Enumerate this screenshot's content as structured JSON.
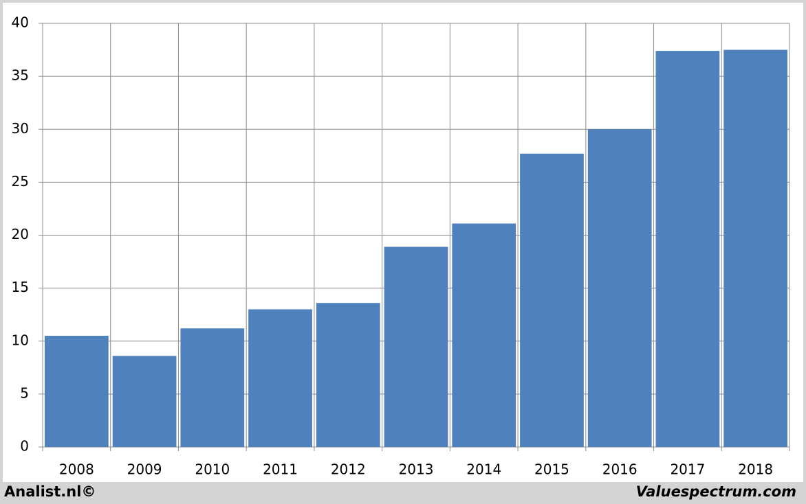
{
  "chart_data": {
    "type": "bar",
    "categories": [
      "2008",
      "2009",
      "2010",
      "2011",
      "2012",
      "2013",
      "2014",
      "2015",
      "2016",
      "2017",
      "2018"
    ],
    "values": [
      10.5,
      8.6,
      11.2,
      13.0,
      13.6,
      18.9,
      21.1,
      27.7,
      30.0,
      37.4,
      37.5
    ],
    "color": "#4f81bd",
    "ylim": [
      0,
      40
    ],
    "yticks": [
      0,
      5,
      10,
      15,
      20,
      25,
      30,
      35,
      40
    ],
    "grid": true
  },
  "footer": {
    "left": "Analist.nl©",
    "right": "Valuespectrum.com"
  }
}
